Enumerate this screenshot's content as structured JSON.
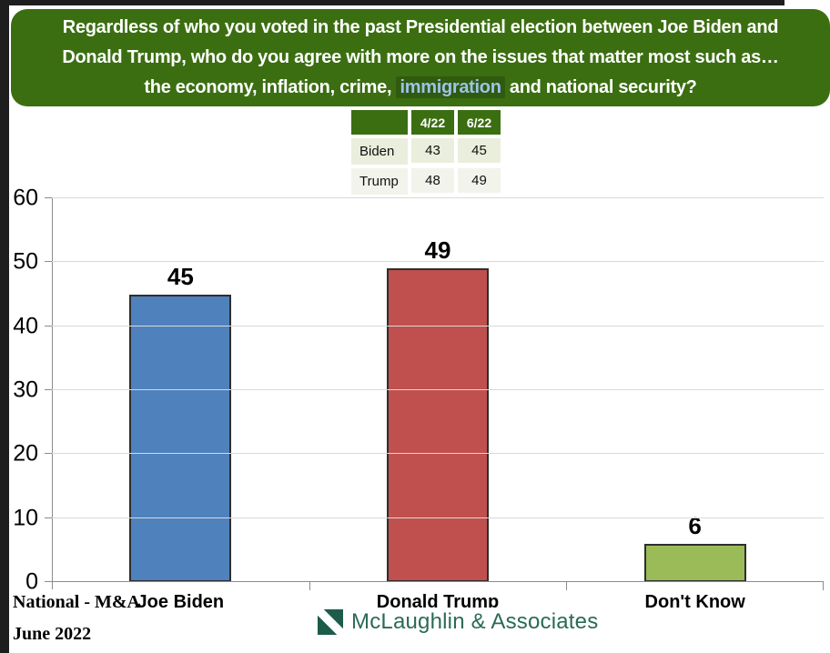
{
  "header": {
    "line1": "Regardless of who you voted in the past Presidential election between Joe Biden and",
    "line2": "Donald Trump, who do you agree with more on the issues that matter most such as…",
    "line3_before": "the economy, inflation, crime, ",
    "line3_highlight": "immigration",
    "line3_after": " and national security?"
  },
  "comparison_table": {
    "col_headers": [
      "4/22",
      "6/22"
    ],
    "rows": [
      {
        "label": "Biden",
        "values": [
          "43",
          "45"
        ]
      },
      {
        "label": "Trump",
        "values": [
          "48",
          "49"
        ]
      }
    ]
  },
  "chart_data": {
    "type": "bar",
    "categories": [
      "Joe Biden",
      "Donald Trump",
      "Don't Know"
    ],
    "values": [
      45,
      49,
      6
    ],
    "bar_colors": [
      "#4F81BD",
      "#C0504D",
      "#9BBB59"
    ],
    "bar_border_color": "#2e2e2e",
    "title": "",
    "xlabel": "",
    "ylabel": "",
    "ylim": [
      0,
      60
    ],
    "yticks": [
      0,
      10,
      20,
      30,
      40,
      50,
      60
    ],
    "grid": "horizontal",
    "legend": "none",
    "data_labels": true
  },
  "footer": {
    "source_line1": "National - M&A",
    "source_line2": "June 2022",
    "logo_text": "McLaughlin & Associates"
  },
  "colors": {
    "header_bg": "#3b6e11",
    "highlight_bg": "#2f5a10",
    "highlight_text": "#9dc3e6",
    "table_header_bg": "#3b6e11",
    "table_row_biden_bg": "#e9efdc",
    "table_row_trump_bg": "#f2f4ec",
    "gridline": "#d9d9d9",
    "axis": "#8c8c8c",
    "logo_square": "#1d5b4b",
    "logo_text": "#2b6a58",
    "frame_edge": "#1e1e1e"
  }
}
